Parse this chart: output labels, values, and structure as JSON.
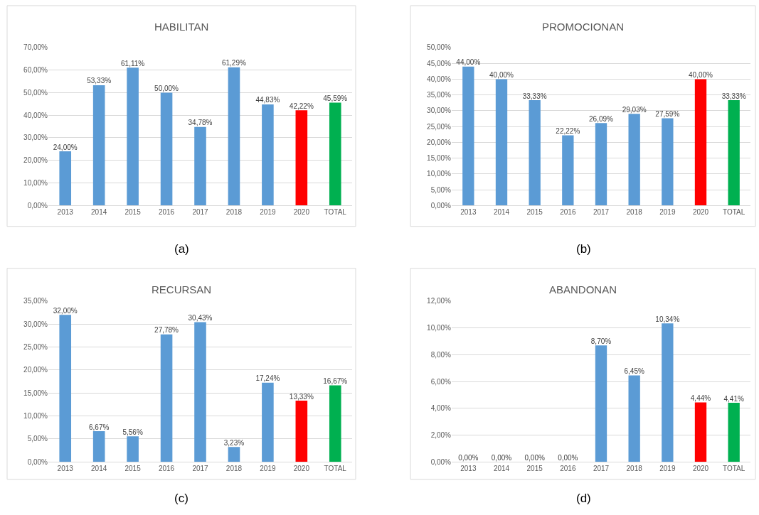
{
  "chart_data": [
    {
      "type": "bar",
      "title": "HABILITAN",
      "categories": [
        "2013",
        "2014",
        "2015",
        "2016",
        "2017",
        "2018",
        "2019",
        "2020",
        "TOTAL"
      ],
      "values": [
        24.0,
        53.33,
        61.11,
        50.0,
        34.78,
        61.29,
        44.83,
        42.22,
        45.59
      ],
      "value_labels": [
        "24,00%",
        "53,33%",
        "61,11%",
        "50,00%",
        "34,78%",
        "61,29%",
        "44,83%",
        "42,22%",
        "45,59%"
      ],
      "colors": [
        "#5b9bd5",
        "#5b9bd5",
        "#5b9bd5",
        "#5b9bd5",
        "#5b9bd5",
        "#5b9bd5",
        "#5b9bd5",
        "#ff0000",
        "#00b050"
      ],
      "ylim": [
        0,
        70
      ],
      "yticks": [
        {
          "value": 0,
          "label": "0,00%"
        },
        {
          "value": 10,
          "label": "10,00%"
        },
        {
          "value": 20,
          "label": "20,00%"
        },
        {
          "value": 30,
          "label": "30,00%"
        },
        {
          "value": 40,
          "label": "40,00%"
        },
        {
          "value": 50,
          "label": "50,00%"
        },
        {
          "value": 60,
          "label": "60,00%"
        },
        {
          "value": 70,
          "label": "70,00%"
        }
      ],
      "grid": "y",
      "annotations": [
        "(a)"
      ]
    },
    {
      "type": "bar",
      "title": "PROMOCIONAN",
      "categories": [
        "2013",
        "2014",
        "2015",
        "2016",
        "2017",
        "2018",
        "2019",
        "2020",
        "TOTAL"
      ],
      "values": [
        44.0,
        40.0,
        33.33,
        22.22,
        26.09,
        29.03,
        27.59,
        40.0,
        33.33
      ],
      "value_labels": [
        "44,00%",
        "40,00%",
        "33,33%",
        "22,22%",
        "26,09%",
        "29,03%",
        "27,59%",
        "40,00%",
        "33,33%"
      ],
      "colors": [
        "#5b9bd5",
        "#5b9bd5",
        "#5b9bd5",
        "#5b9bd5",
        "#5b9bd5",
        "#5b9bd5",
        "#5b9bd5",
        "#ff0000",
        "#00b050"
      ],
      "ylim": [
        0,
        50
      ],
      "yticks": [
        {
          "value": 0,
          "label": "0,00%"
        },
        {
          "value": 5,
          "label": "5,00%"
        },
        {
          "value": 10,
          "label": "10,00%"
        },
        {
          "value": 15,
          "label": "15,00%"
        },
        {
          "value": 20,
          "label": "20,00%"
        },
        {
          "value": 25,
          "label": "25,00%"
        },
        {
          "value": 30,
          "label": "30,00%"
        },
        {
          "value": 35,
          "label": "35,00%"
        },
        {
          "value": 40,
          "label": "40,00%"
        },
        {
          "value": 45,
          "label": "45,00%"
        },
        {
          "value": 50,
          "label": "50,00%"
        }
      ],
      "grid": "y",
      "annotations": [
        "(b)"
      ]
    },
    {
      "type": "bar",
      "title": "RECURSAN",
      "categories": [
        "2013",
        "2014",
        "2015",
        "2016",
        "2017",
        "2018",
        "2019",
        "2020",
        "TOTAL"
      ],
      "values": [
        32.0,
        6.67,
        5.56,
        27.78,
        30.43,
        3.23,
        17.24,
        13.33,
        16.67
      ],
      "value_labels": [
        "32,00%",
        "6,67%",
        "5,56%",
        "27,78%",
        "30,43%",
        "3,23%",
        "17,24%",
        "13,33%",
        "16,67%"
      ],
      "colors": [
        "#5b9bd5",
        "#5b9bd5",
        "#5b9bd5",
        "#5b9bd5",
        "#5b9bd5",
        "#5b9bd5",
        "#5b9bd5",
        "#ff0000",
        "#00b050"
      ],
      "ylim": [
        0,
        35
      ],
      "yticks": [
        {
          "value": 0,
          "label": "0,00%"
        },
        {
          "value": 5,
          "label": "5,00%"
        },
        {
          "value": 10,
          "label": "10,00%"
        },
        {
          "value": 15,
          "label": "15,00%"
        },
        {
          "value": 20,
          "label": "20,00%"
        },
        {
          "value": 25,
          "label": "25,00%"
        },
        {
          "value": 30,
          "label": "30,00%"
        },
        {
          "value": 35,
          "label": "35,00%"
        }
      ],
      "grid": "y",
      "annotations": [
        "(c)"
      ]
    },
    {
      "type": "bar",
      "title": "ABANDONAN",
      "categories": [
        "2013",
        "2014",
        "2015",
        "2016",
        "2017",
        "2018",
        "2019",
        "2020",
        "TOTAL"
      ],
      "values": [
        0.0,
        0.0,
        0.0,
        0.0,
        8.7,
        6.45,
        10.34,
        4.44,
        4.41
      ],
      "value_labels": [
        "0,00%",
        "0,00%",
        "0,00%",
        "0,00%",
        "8,70%",
        "6,45%",
        "10,34%",
        "4,44%",
        "4,41%"
      ],
      "colors": [
        "#5b9bd5",
        "#5b9bd5",
        "#5b9bd5",
        "#5b9bd5",
        "#5b9bd5",
        "#5b9bd5",
        "#5b9bd5",
        "#ff0000",
        "#00b050"
      ],
      "ylim": [
        0,
        12
      ],
      "yticks": [
        {
          "value": 0,
          "label": "0,00%"
        },
        {
          "value": 2,
          "label": "2,00%"
        },
        {
          "value": 4,
          "label": "4,00%"
        },
        {
          "value": 6,
          "label": "6,00%"
        },
        {
          "value": 8,
          "label": "8,00%"
        },
        {
          "value": 10,
          "label": "10,00%"
        },
        {
          "value": 12,
          "label": "12,00%"
        }
      ],
      "grid": "y",
      "annotations": [
        "(d)"
      ]
    }
  ]
}
